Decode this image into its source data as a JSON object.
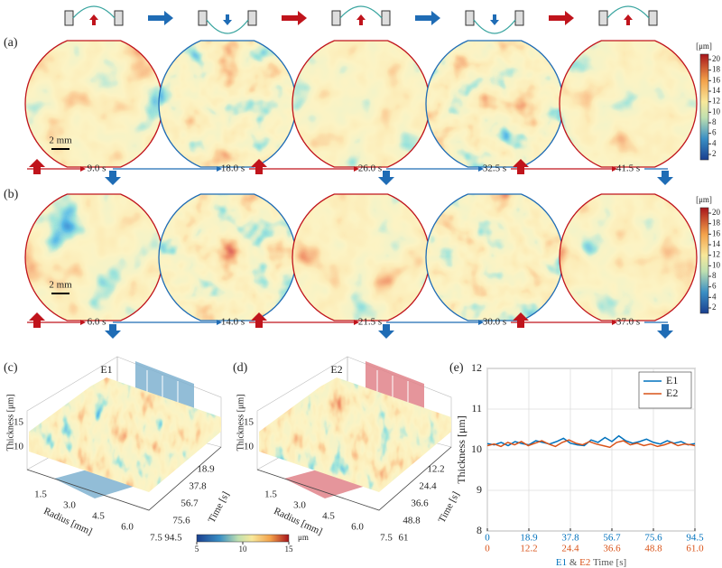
{
  "panel_labels": [
    "(a)",
    "(b)",
    "(c)",
    "(d)",
    "(e)"
  ],
  "row_a": {
    "times": [
      "9.0 s",
      "18.0 s",
      "26.0 s",
      "32.5 s",
      "41.5 s"
    ],
    "scale_bar": "2 mm",
    "colorbar_unit": "[μm]",
    "colorbar_ticks": [
      2,
      4,
      6,
      8,
      10,
      12,
      14,
      16,
      18,
      20
    ]
  },
  "row_b": {
    "times": [
      "6.0 s",
      "14.0 s",
      "21.5 s",
      "30.0 s",
      "37.0 s"
    ],
    "scale_bar": "2 mm",
    "colorbar_unit": "[μm]",
    "colorbar_ticks": [
      2,
      4,
      6,
      8,
      10,
      12,
      14,
      16,
      18,
      20
    ]
  },
  "surface_c": {
    "label": "E1",
    "zlabel": "Thickness [μm]",
    "zticks": [
      10,
      15
    ],
    "radius_label": "Radius [mm]",
    "radius_ticks": [
      "1.5",
      "3.0",
      "4.5",
      "6.0",
      "7.5"
    ],
    "time_label": "Time [s]",
    "time_ticks": [
      "18.9",
      "37.8",
      "56.7",
      "75.6",
      "94.5"
    ]
  },
  "surface_d": {
    "label": "E2",
    "zlabel": "Thickness [μm]",
    "zticks": [
      10,
      15
    ],
    "radius_label": "Radius [mm]",
    "radius_ticks": [
      "1.5",
      "3.0",
      "4.5",
      "6.0",
      "7.5"
    ],
    "time_label": "Time [s]",
    "time_ticks": [
      "12.2",
      "24.4",
      "36.6",
      "48.8",
      "61"
    ]
  },
  "surface_colorbar": {
    "ticks": [
      5,
      10,
      15
    ],
    "unit": "μm"
  },
  "chart_data": {
    "type": "line",
    "xlabel_parts": [
      "E1",
      "&",
      "E2",
      "Time [s]"
    ],
    "ylabel": "Thickness [μm]",
    "xlim": [
      0,
      94.5
    ],
    "x2lim": [
      0,
      61
    ],
    "xticks": [
      0,
      18.9,
      37.8,
      56.7,
      75.6,
      94.5
    ],
    "x2ticks": [
      0,
      12.2,
      24.4,
      36.6,
      48.8,
      {
        "value": 61,
        "label": "61.0"
      }
    ],
    "ylim": [
      8,
      12
    ],
    "yticks": [
      8,
      9,
      10,
      11,
      12
    ],
    "grid": true,
    "legend": "upper right",
    "series": [
      {
        "name": "E1",
        "color": "#0072bd",
        "x": [
          0,
          3.15,
          6.3,
          9.45,
          12.6,
          15.75,
          18.9,
          22.05,
          25.2,
          28.35,
          31.5,
          34.65,
          37.8,
          40.95,
          44.1,
          47.25,
          50.4,
          53.55,
          56.7,
          59.85,
          63,
          66.15,
          69.3,
          72.45,
          75.6,
          78.75,
          81.9,
          85.05,
          88.2,
          91.35,
          94.5
        ],
        "values": [
          10.15,
          10.12,
          10.18,
          10.1,
          10.2,
          10.15,
          10.12,
          10.22,
          10.18,
          10.14,
          10.2,
          10.28,
          10.16,
          10.12,
          10.1,
          10.24,
          10.18,
          10.3,
          10.2,
          10.34,
          10.22,
          10.16,
          10.2,
          10.26,
          10.18,
          10.14,
          10.22,
          10.16,
          10.2,
          10.12,
          10.15
        ]
      },
      {
        "name": "E2",
        "color": "#d95319",
        "axis": "x2",
        "x": [
          0,
          2,
          4,
          6,
          8,
          10,
          12,
          14,
          16,
          18,
          20,
          22,
          24,
          26,
          28,
          30,
          32,
          34,
          36,
          38,
          40,
          42,
          44,
          46,
          48,
          50,
          52,
          54,
          56,
          58,
          60,
          61
        ],
        "values": [
          10.1,
          10.14,
          10.08,
          10.18,
          10.12,
          10.2,
          10.1,
          10.16,
          10.22,
          10.14,
          10.08,
          10.18,
          10.24,
          10.16,
          10.12,
          10.2,
          10.14,
          10.1,
          10.06,
          10.18,
          10.22,
          10.12,
          10.16,
          10.1,
          10.14,
          10.08,
          10.12,
          10.18,
          10.1,
          10.14,
          10.12,
          10.1
        ]
      }
    ]
  }
}
